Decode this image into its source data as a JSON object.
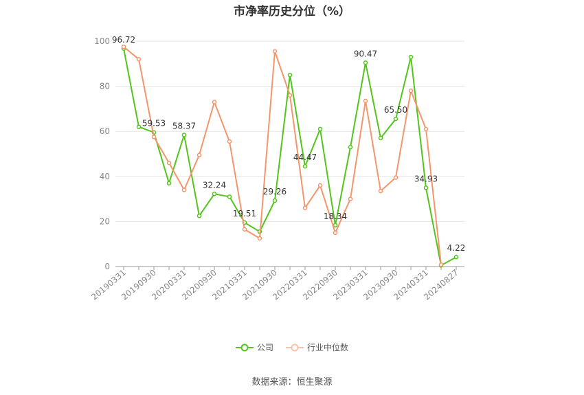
{
  "chart_data": {
    "type": "line",
    "title": "市净率历史分位（%）",
    "source": "数据来源：恒生聚源",
    "ylim": [
      0,
      100
    ],
    "yticks": [
      0,
      20,
      40,
      60,
      80,
      100
    ],
    "x_tick_labels": [
      "20190331",
      "20190930",
      "20200331",
      "20200930",
      "20210331",
      "20210930",
      "20220331",
      "20220930",
      "20230331",
      "20230930",
      "20240331",
      "20240827"
    ],
    "x": [
      "20190331",
      "20190630",
      "20190930",
      "20191231",
      "20200331",
      "20200630",
      "20200930",
      "20201231",
      "20210331",
      "20210630",
      "20210930",
      "20211231",
      "20220331",
      "20220630",
      "20220930",
      "20221231",
      "20230331",
      "20230630",
      "20230930",
      "20231231",
      "20240331",
      "20240630",
      "20240827"
    ],
    "legend_position": "bottom",
    "grid": true,
    "series": [
      {
        "name": "公司",
        "color": "#52c41a",
        "values": [
          96.72,
          62.0,
          59.53,
          37.0,
          58.37,
          22.5,
          32.24,
          31.0,
          19.51,
          15.5,
          29.26,
          85.0,
          44.47,
          61.0,
          18.34,
          53.0,
          90.47,
          57.0,
          65.5,
          93.0,
          34.93,
          0.5,
          4.22
        ],
        "labels": [
          "96.72",
          "",
          "59.53",
          "",
          "58.37",
          "",
          "32.24",
          "",
          "19.51",
          "",
          "29.26",
          "",
          "44.47",
          "",
          "18.34",
          "",
          "90.47",
          "",
          "65.50",
          "",
          "34.93",
          "",
          "4.22"
        ]
      },
      {
        "name": "行业中位数",
        "color": "#f4956a",
        "values": [
          97.5,
          92.0,
          57.5,
          46.0,
          34.0,
          49.5,
          73.0,
          55.5,
          16.5,
          12.5,
          95.5,
          76.0,
          26.0,
          36.0,
          15.0,
          30.0,
          73.5,
          33.5,
          39.5,
          78.0,
          61.0,
          0.8,
          null
        ]
      }
    ]
  }
}
